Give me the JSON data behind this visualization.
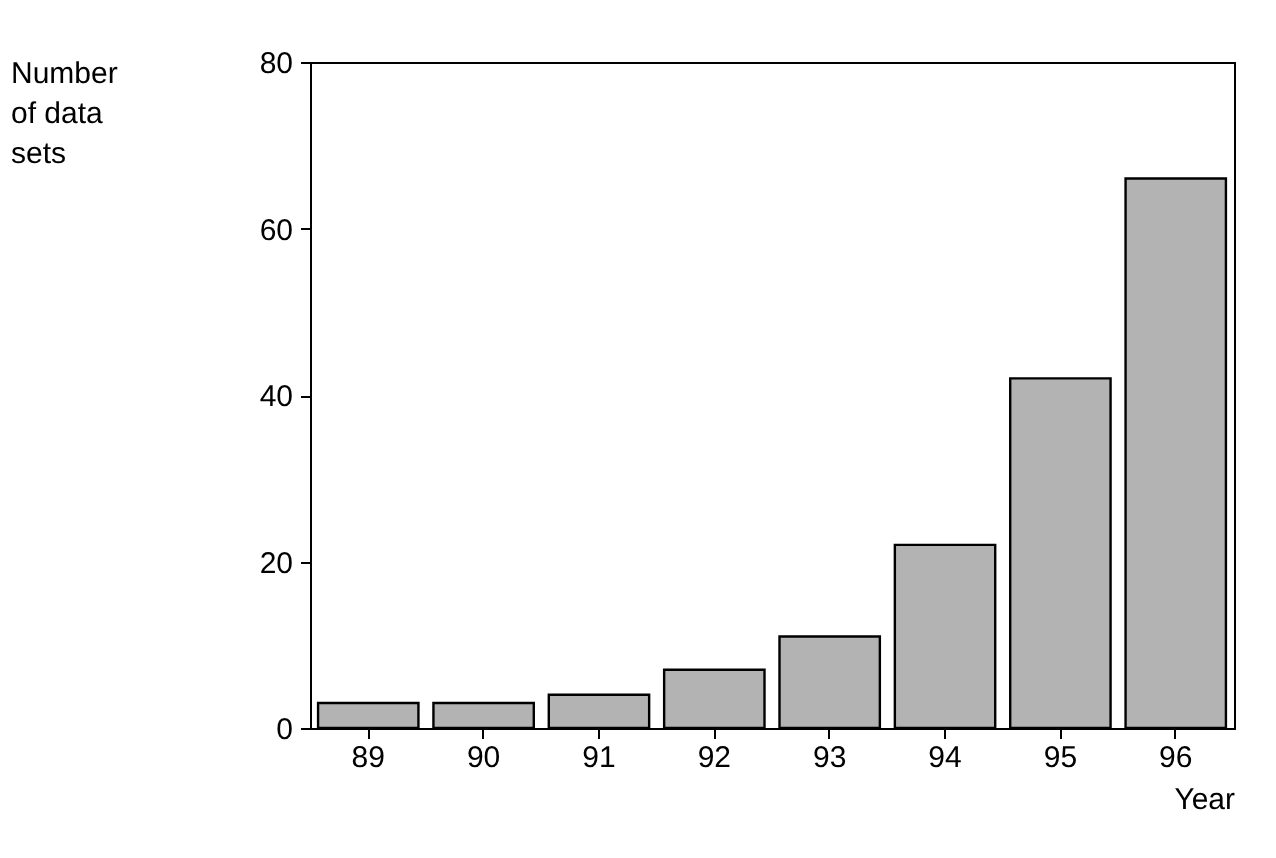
{
  "chart_data": {
    "type": "bar",
    "xlabel": "Year",
    "ylabel": "Number of data sets",
    "categories": [
      "89",
      "90",
      "91",
      "92",
      "93",
      "94",
      "95",
      "96"
    ],
    "values": [
      3,
      3,
      4,
      7,
      11,
      22,
      42,
      66
    ],
    "color": "#b3b3b3",
    "ylim": [
      0,
      80
    ],
    "yticks": [
      0,
      20,
      40,
      60,
      80
    ],
    "grid": false
  }
}
